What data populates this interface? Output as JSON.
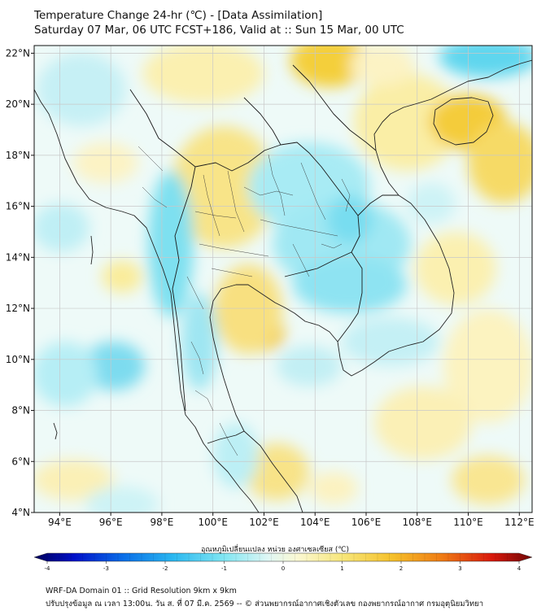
{
  "title": {
    "line1": "Temperature Change 24-hr (℃) - [Data Assimilation]",
    "line2": "Saturday 07 Mar, 06 UTC FCST+186, Valid at :: Sun 15 Mar, 00 UTC"
  },
  "map": {
    "lon_range": [
      93,
      112.5
    ],
    "lat_range": [
      4,
      22.3
    ],
    "lon_ticks": [
      "94°E",
      "96°E",
      "98°E",
      "100°E",
      "102°E",
      "104°E",
      "106°E",
      "108°E",
      "110°E",
      "112°E"
    ],
    "lat_ticks": [
      "22°N",
      "20°N",
      "18°N",
      "16°N",
      "14°N",
      "12°N",
      "10°N",
      "8°N",
      "6°N",
      "4°N"
    ],
    "grid": true,
    "colors": {
      "background": "#eefaf8",
      "warm": "#f5de6e",
      "cool": "#7ee3f0",
      "coast": "#222222"
    }
  },
  "colorbar": {
    "title": "อุณหภูมิเปลี่ยนแปลง หน่วย องศาเซลเซียส (℃)",
    "ticks": [
      "-4",
      "-3",
      "-2",
      "-1",
      "0",
      "1",
      "2",
      "3",
      "4"
    ]
  },
  "footer": {
    "line1": "WRF-DA Domain 01 :: Grid Resolution 9km x 9km",
    "line2": "ปรับปรุงข้อมูล ณ เวลา 13:00น. วัน ส. ที่ 07 มี.ค. 2569 -- © ส่วนพยากรณ์อากาศเชิงตัวเลข กองพยากรณ์อากาศ กรมอุตุนิยมวิทยา"
  }
}
